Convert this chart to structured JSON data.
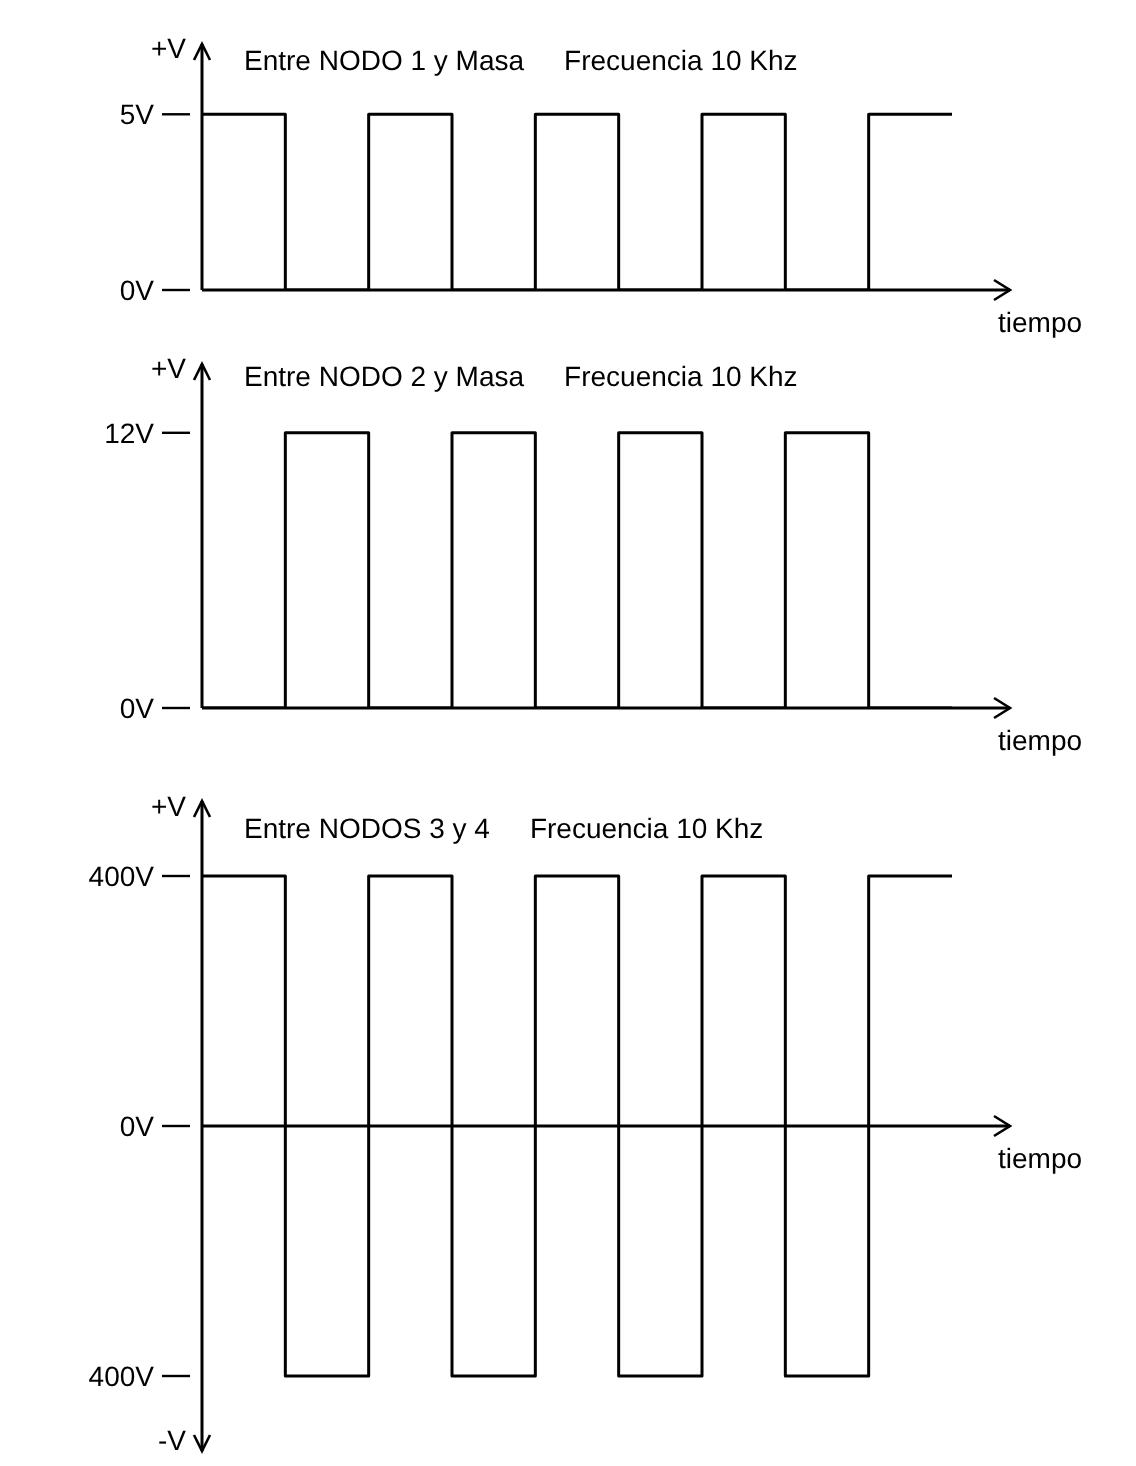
{
  "chart_data": [
    {
      "type": "step",
      "title": "Entre NODO 1 y Masa",
      "subtitle": "Frecuencia 10 Khz",
      "ylabel": "+V",
      "xlabel": "tiempo",
      "categories": [
        null,
        null,
        null,
        null,
        null,
        null,
        null,
        null,
        null,
        null
      ],
      "series": [
        {
          "color": "#000000",
          "values": [
            5,
            0,
            5,
            0,
            5,
            0,
            5,
            0,
            5,
            5
          ]
        }
      ],
      "ylim": [
        0,
        7
      ],
      "yticks": [
        {
          "value": 0,
          "label": "0V"
        },
        {
          "value": 5,
          "label": "5V"
        }
      ]
    },
    {
      "type": "step",
      "title": "Entre NODO 2 y Masa",
      "subtitle": "Frecuencia 10 Khz",
      "ylabel": "+V",
      "xlabel": "tiempo",
      "categories": [
        null,
        null,
        null,
        null,
        null,
        null,
        null,
        null,
        null,
        null
      ],
      "series": [
        {
          "color": "#000000",
          "values": [
            0,
            12,
            0,
            12,
            0,
            12,
            0,
            12,
            0,
            0
          ]
        }
      ],
      "ylim": [
        0,
        15
      ],
      "yticks": [
        {
          "value": 0,
          "label": "0V"
        },
        {
          "value": 12,
          "label": "12V"
        }
      ]
    },
    {
      "type": "step",
      "title": "Entre NODOS 3 y 4",
      "subtitle": "Frecuencia 10 Khz",
      "ylabel": "+V",
      "xlabel": "tiempo",
      "annotations": [
        "-V"
      ],
      "categories": [
        null,
        null,
        null,
        null,
        null,
        null,
        null,
        null,
        null,
        null
      ],
      "series": [
        {
          "color": "#000000",
          "values": [
            400,
            -400,
            400,
            -400,
            400,
            -400,
            400,
            -400,
            400,
            400
          ]
        }
      ],
      "ylim": [
        -520,
        520
      ],
      "yticks": [
        {
          "value": -400,
          "label": "400V"
        },
        {
          "value": 0,
          "label": "0V"
        },
        {
          "value": 400,
          "label": "400V"
        }
      ]
    }
  ]
}
